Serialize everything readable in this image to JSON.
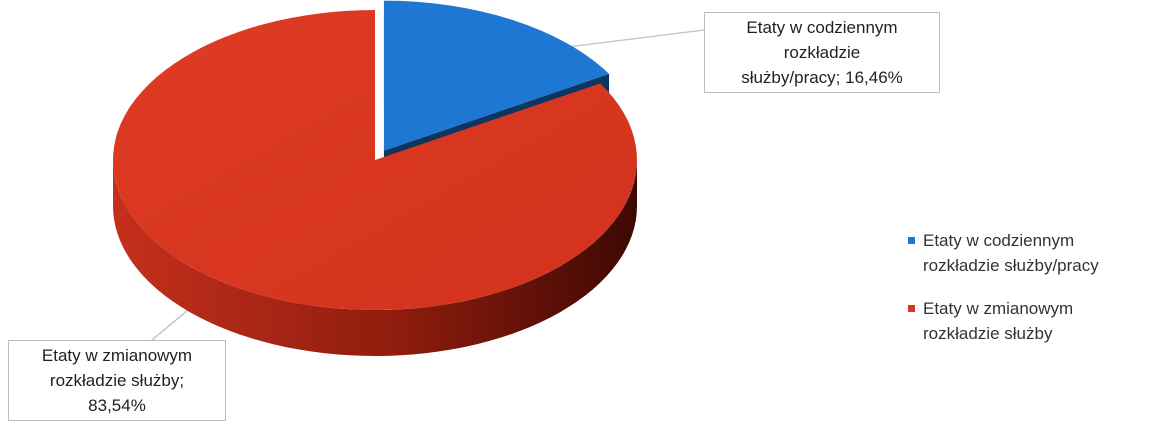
{
  "chart_data": {
    "type": "pie",
    "title": "",
    "slices": [
      {
        "name": "Etaty w codziennym rozkładzie służby/pracy",
        "value": 16.46,
        "color": "#1f77d4",
        "label_lines": [
          "Etaty w codziennym",
          "rozkładzie",
          "służby/pracy; 16,46%"
        ],
        "legend_lines": [
          "Etaty w codziennym",
          "rozkładzie służby/pracy"
        ],
        "exploded": true
      },
      {
        "name": "Etaty w zmianowym rozkładzie służby",
        "value": 83.54,
        "color": "#d9351f",
        "label_lines": [
          "Etaty w zmianowym",
          "rozkładzie służby;",
          "83,54%"
        ],
        "legend_lines": [
          "Etaty w zmianowym",
          "rozkładzie służby"
        ],
        "exploded": false
      }
    ],
    "legend_position": "right",
    "style": "3d-pie"
  }
}
